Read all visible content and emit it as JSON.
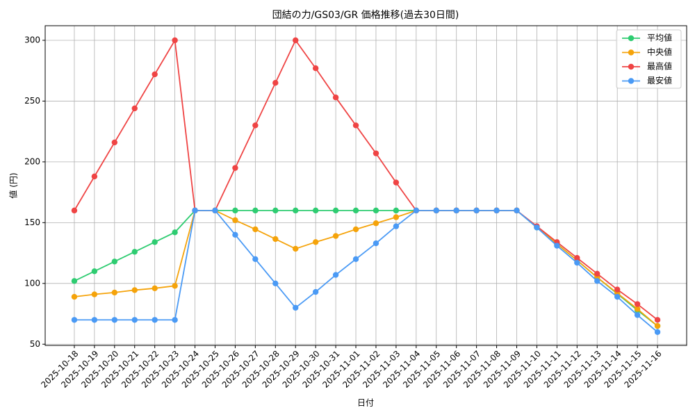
{
  "chart_data": {
    "type": "line",
    "title": "団結の力/GS03/GR 価格推移(過去30日間)",
    "x_label": "日付",
    "y_label": "値 (円)",
    "categories": [
      "2025-10-18",
      "2025-10-19",
      "2025-10-20",
      "2025-10-21",
      "2025-10-22",
      "2025-10-23",
      "2025-10-24",
      "2025-10-25",
      "2025-10-26",
      "2025-10-27",
      "2025-10-28",
      "2025-10-29",
      "2025-10-30",
      "2025-10-31",
      "2025-11-01",
      "2025-11-02",
      "2025-11-03",
      "2025-11-04",
      "2025-11-05",
      "2025-11-06",
      "2025-11-07",
      "2025-11-08",
      "2025-11-09",
      "2025-11-10",
      "2025-11-11",
      "2025-11-12",
      "2025-11-13",
      "2025-11-14",
      "2025-11-15",
      "2025-11-16"
    ],
    "series": [
      {
        "name": "平均値",
        "color": "#2ecc71",
        "values": [
          102,
          110,
          118,
          126,
          134,
          142,
          160,
          160,
          160,
          160,
          160,
          160,
          160,
          160,
          160,
          160,
          160,
          160,
          160,
          160,
          160,
          160,
          160,
          146,
          132.5,
          119,
          105,
          91.5,
          78,
          65
        ]
      },
      {
        "name": "中央値",
        "color": "#f5a30a",
        "values": [
          89,
          91,
          92.5,
          94.5,
          96,
          98,
          160,
          160,
          152,
          144.5,
          136.5,
          128.5,
          134,
          139,
          144.5,
          149.5,
          154.5,
          160,
          160,
          160,
          160,
          160,
          160,
          146.5,
          132.5,
          119,
          105,
          92,
          79,
          65
        ]
      },
      {
        "name": "最高値",
        "color": "#ef4444",
        "values": [
          160,
          188,
          216,
          244,
          272,
          300,
          160,
          160,
          195,
          230,
          265,
          300,
          277,
          253,
          230,
          207,
          183,
          160,
          160,
          160,
          160,
          160,
          160,
          147,
          134,
          121,
          108,
          95,
          83,
          70
        ]
      },
      {
        "name": "最安値",
        "color": "#4a9af5",
        "values": [
          70,
          70,
          70,
          70,
          70,
          70,
          160,
          160,
          140,
          120,
          100,
          80,
          93,
          107,
          120,
          133,
          147,
          160,
          160,
          160,
          160,
          160,
          160,
          146,
          131,
          117,
          102,
          89,
          74,
          60
        ]
      }
    ],
    "ylim": [
      49,
      312
    ],
    "yticks": [
      50,
      100,
      150,
      200,
      250,
      300
    ],
    "grid": true,
    "legend": "upper right"
  }
}
